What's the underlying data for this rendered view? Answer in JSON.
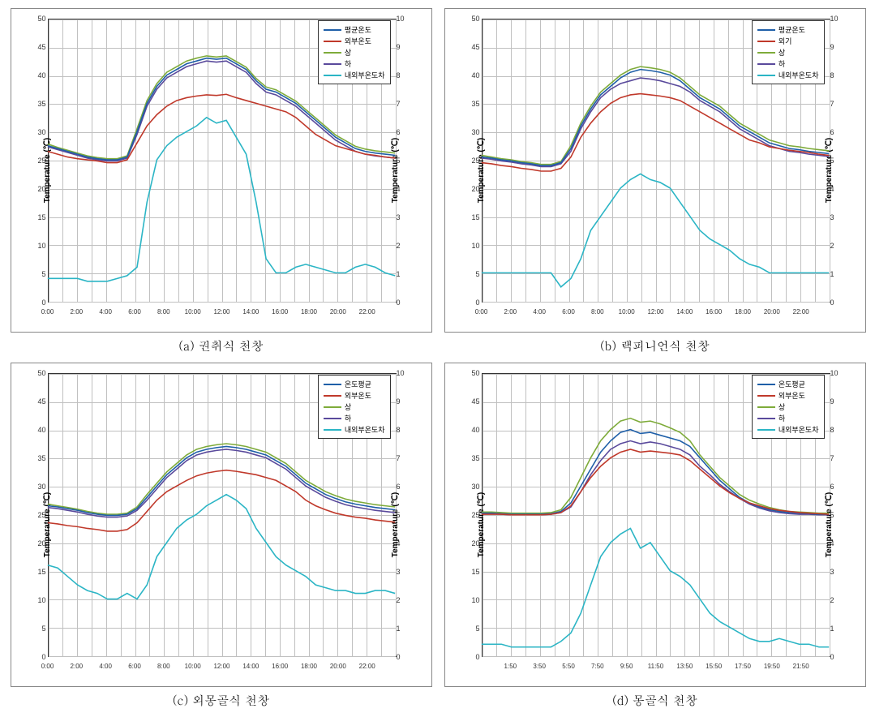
{
  "colors": {
    "series_avg": "#1f5fa8",
    "series_out": "#c0392b",
    "series_upper": "#7eab3a",
    "series_lower": "#5a4a9c",
    "series_diff": "#2bb5c5",
    "grid": "#c0c0c0",
    "background": "#ffffff",
    "border": "#333333"
  },
  "axis": {
    "y_left_label": "Temperature (℃)",
    "y_right_label": "Temperature (℃)",
    "y_left_min": 0,
    "y_left_max": 50,
    "y_left_step": 5,
    "y_right_min": 0,
    "y_right_max": 10,
    "y_right_step": 1,
    "x_ticks_a": [
      "0:00",
      "2:00",
      "4:00",
      "6:00",
      "8:00",
      "10:00",
      "12:00",
      "14:00",
      "16:00",
      "18:00",
      "20:00",
      "22:00"
    ],
    "x_ticks_d": [
      "",
      "1:50",
      "3:50",
      "5:50",
      "7:50",
      "9:50",
      "11:50",
      "13:50",
      "15:50",
      "17:50",
      "19:50",
      "21:50"
    ]
  },
  "charts": [
    {
      "id": "a",
      "caption": "(a) 권취식 천창",
      "legend": [
        "평균온도",
        "외부온도",
        "상",
        "하",
        "내외부온도차"
      ],
      "x_ticks": "x_ticks_a",
      "avg": [
        27.5,
        27,
        26.5,
        26,
        25.5,
        25.2,
        25,
        25,
        25.5,
        30,
        35,
        38,
        40,
        41,
        42,
        42.5,
        43,
        42.8,
        43,
        42,
        41,
        39,
        37.5,
        37,
        36,
        35,
        33.5,
        32,
        30.5,
        29,
        28,
        27,
        26.5,
        26.2,
        26,
        25.8
      ],
      "out": [
        26.5,
        26,
        25.5,
        25.2,
        25,
        24.8,
        24.5,
        24.5,
        25,
        28,
        31,
        33,
        34.5,
        35.5,
        36,
        36.3,
        36.5,
        36.4,
        36.6,
        36,
        35.5,
        35,
        34.5,
        34,
        33.5,
        32.5,
        31,
        29.5,
        28.5,
        27.5,
        27,
        26.5,
        26,
        25.8,
        25.5,
        25.3
      ],
      "upper": [
        27.8,
        27.2,
        26.7,
        26.2,
        25.7,
        25.4,
        25.2,
        25.2,
        25.7,
        30.5,
        35.5,
        38.5,
        40.5,
        41.5,
        42.5,
        43,
        43.4,
        43.2,
        43.4,
        42.4,
        41.4,
        39.4,
        37.9,
        37.4,
        36.4,
        35.4,
        33.9,
        32.4,
        30.9,
        29.4,
        28.4,
        27.4,
        26.9,
        26.6,
        26.4,
        26.2
      ],
      "lower": [
        27.3,
        26.8,
        26.3,
        25.8,
        25.3,
        25,
        24.8,
        24.8,
        25.3,
        29.5,
        34.5,
        37.5,
        39.5,
        40.5,
        41.5,
        42,
        42.5,
        42.3,
        42.5,
        41.5,
        40.5,
        38.5,
        37,
        36.5,
        35.5,
        34.5,
        33,
        31.5,
        30,
        28.5,
        27.5,
        26.5,
        26,
        25.7,
        25.5,
        25.3
      ],
      "diff": [
        0.8,
        0.8,
        0.8,
        0.8,
        0.7,
        0.7,
        0.7,
        0.8,
        0.9,
        1.2,
        3.5,
        5,
        5.5,
        5.8,
        6,
        6.2,
        6.5,
        6.3,
        6.4,
        5.8,
        5.2,
        3.5,
        1.5,
        1.0,
        1.0,
        1.2,
        1.3,
        1.2,
        1.1,
        1.0,
        1.0,
        1.2,
        1.3,
        1.2,
        1.0,
        0.9
      ]
    },
    {
      "id": "b",
      "caption": "(b) 랙피니언식 천창",
      "legend": [
        "평균온도",
        "외기",
        "상",
        "하",
        "내외부온도차"
      ],
      "x_ticks": "x_ticks_a",
      "avg": [
        25.5,
        25.3,
        25,
        24.8,
        24.5,
        24.3,
        24,
        24,
        24.5,
        27,
        31,
        34,
        36.5,
        38,
        39.5,
        40.5,
        41,
        40.8,
        40.5,
        40,
        39,
        37.5,
        36,
        35,
        34,
        32.5,
        31,
        30,
        29,
        28,
        27.5,
        27,
        26.8,
        26.5,
        26.3,
        26.1
      ],
      "out": [
        24.5,
        24.3,
        24,
        23.8,
        23.5,
        23.3,
        23,
        23,
        23.5,
        25.5,
        29,
        31.5,
        33.5,
        35,
        36,
        36.5,
        36.7,
        36.5,
        36.3,
        36,
        35.5,
        34.5,
        33.5,
        32.5,
        31.5,
        30.5,
        29.5,
        28.5,
        28,
        27.3,
        27,
        26.7,
        26.5,
        26.3,
        26,
        25.8
      ],
      "upper": [
        25.8,
        25.5,
        25.2,
        25,
        24.7,
        24.5,
        24.2,
        24.2,
        24.7,
        27.5,
        31.5,
        34.5,
        37,
        38.5,
        40,
        41,
        41.5,
        41.3,
        41,
        40.5,
        39.5,
        38,
        36.5,
        35.5,
        34.5,
        33,
        31.5,
        30.5,
        29.5,
        28.5,
        28,
        27.5,
        27.3,
        27,
        26.8,
        26.6
      ],
      "lower": [
        25.3,
        25.1,
        24.8,
        24.6,
        24.3,
        24.1,
        23.8,
        23.8,
        24.3,
        26.5,
        30.5,
        33.5,
        36,
        37.5,
        38.5,
        39,
        39.5,
        39.3,
        39,
        38.5,
        38,
        37,
        35.5,
        34.5,
        33.5,
        32,
        30.5,
        29.5,
        28.5,
        27.5,
        27,
        26.5,
        26.3,
        26,
        25.8,
        25.6
      ],
      "diff": [
        1.0,
        1.0,
        1.0,
        1.0,
        1.0,
        1.0,
        1.0,
        1.0,
        0.5,
        0.8,
        1.5,
        2.5,
        3.0,
        3.5,
        4.0,
        4.3,
        4.5,
        4.3,
        4.2,
        4.0,
        3.5,
        3.0,
        2.5,
        2.2,
        2.0,
        1.8,
        1.5,
        1.3,
        1.2,
        1.0,
        1.0,
        1.0,
        1.0,
        1.0,
        1.0,
        1.0
      ]
    },
    {
      "id": "c",
      "caption": "(c) 외몽골식 천창",
      "legend": [
        "온도평균",
        "외부온도",
        "상",
        "하",
        "내외부온도차"
      ],
      "x_ticks": "x_ticks_a",
      "avg": [
        26.5,
        26.3,
        26,
        25.7,
        25.3,
        25,
        24.8,
        24.8,
        25,
        26,
        28,
        30,
        32,
        33.5,
        35,
        36,
        36.5,
        36.8,
        37,
        36.8,
        36.5,
        36,
        35.5,
        34.5,
        33.5,
        32,
        30.5,
        29.5,
        28.5,
        27.8,
        27.2,
        26.8,
        26.5,
        26.2,
        26,
        25.8
      ],
      "out": [
        23.5,
        23.3,
        23,
        22.8,
        22.5,
        22.3,
        22,
        22,
        22.3,
        23.5,
        25.5,
        27.5,
        29,
        30,
        31,
        31.8,
        32.3,
        32.6,
        32.8,
        32.6,
        32.3,
        32,
        31.5,
        31,
        30,
        29,
        27.5,
        26.5,
        25.8,
        25.2,
        24.8,
        24.5,
        24.3,
        24,
        23.8,
        23.6
      ],
      "upper": [
        26.8,
        26.5,
        26.2,
        25.9,
        25.5,
        25.2,
        25,
        25,
        25.2,
        26.3,
        28.5,
        30.5,
        32.5,
        34,
        35.5,
        36.5,
        37,
        37.3,
        37.5,
        37.3,
        37,
        36.5,
        36,
        35,
        34,
        32.5,
        31,
        30,
        29,
        28.3,
        27.7,
        27.3,
        27,
        26.7,
        26.5,
        26.3
      ],
      "lower": [
        26.2,
        26,
        25.7,
        25.4,
        25,
        24.7,
        24.5,
        24.5,
        24.7,
        25.7,
        27.5,
        29.5,
        31.5,
        33,
        34.5,
        35.5,
        36,
        36.3,
        36.5,
        36.3,
        36,
        35.5,
        35,
        34,
        33,
        31.5,
        30,
        29,
        28,
        27.3,
        26.7,
        26.3,
        26,
        25.7,
        25.5,
        25.3
      ],
      "diff": [
        3.2,
        3.1,
        2.8,
        2.5,
        2.3,
        2.2,
        2.0,
        2.0,
        2.2,
        2.0,
        2.5,
        3.5,
        4.0,
        4.5,
        4.8,
        5.0,
        5.3,
        5.5,
        5.7,
        5.5,
        5.2,
        4.5,
        4.0,
        3.5,
        3.2,
        3.0,
        2.8,
        2.5,
        2.4,
        2.3,
        2.3,
        2.2,
        2.2,
        2.3,
        2.3,
        2.2
      ]
    },
    {
      "id": "d",
      "caption": "(d) 몽골식 천창",
      "legend": [
        "온도평균",
        "외부온도",
        "상",
        "하",
        "내외부온도차"
      ],
      "x_ticks": "x_ticks_d",
      "avg": [
        25.2,
        25.2,
        25.1,
        25,
        25,
        25,
        25,
        25.1,
        25.5,
        27,
        30,
        33,
        36,
        38,
        39.5,
        40,
        39.3,
        39.5,
        39,
        38.5,
        38,
        37,
        35,
        33,
        31,
        29.5,
        28,
        27,
        26.3,
        25.8,
        25.5,
        25.3,
        25.2,
        25.1,
        25,
        25
      ],
      "out": [
        25,
        25,
        25,
        24.9,
        24.9,
        24.9,
        24.9,
        25,
        25.3,
        26.5,
        29,
        31.5,
        33.5,
        35,
        36,
        36.5,
        36,
        36.2,
        36,
        35.8,
        35.5,
        34.5,
        33,
        31.5,
        30,
        28.8,
        27.8,
        27,
        26.5,
        26,
        25.7,
        25.5,
        25.3,
        25.2,
        25.1,
        25
      ],
      "upper": [
        25.4,
        25.4,
        25.3,
        25.2,
        25.2,
        25.2,
        25.2,
        25.3,
        25.8,
        28,
        31.5,
        35,
        38,
        40,
        41.5,
        42,
        41.3,
        41.5,
        41,
        40.3,
        39.5,
        38,
        35.5,
        33.5,
        31.5,
        30,
        28.5,
        27.5,
        26.8,
        26.2,
        25.8,
        25.5,
        25.4,
        25.3,
        25.2,
        25.2
      ],
      "lower": [
        25.1,
        25.1,
        25,
        24.9,
        24.9,
        24.9,
        24.9,
        25,
        25.3,
        26.3,
        29,
        32,
        34.5,
        36.5,
        37.5,
        38,
        37.5,
        37.8,
        37.5,
        37,
        36.5,
        35.5,
        33.5,
        32,
        30.3,
        29,
        27.8,
        26.8,
        26.1,
        25.6,
        25.3,
        25.1,
        25,
        25,
        24.9,
        24.9
      ],
      "diff": [
        0.4,
        0.4,
        0.4,
        0.3,
        0.3,
        0.3,
        0.3,
        0.3,
        0.5,
        0.8,
        1.5,
        2.5,
        3.5,
        4.0,
        4.3,
        4.5,
        3.8,
        4.0,
        3.5,
        3.0,
        2.8,
        2.5,
        2.0,
        1.5,
        1.2,
        1.0,
        0.8,
        0.6,
        0.5,
        0.5,
        0.6,
        0.5,
        0.4,
        0.4,
        0.3,
        0.3
      ]
    }
  ]
}
